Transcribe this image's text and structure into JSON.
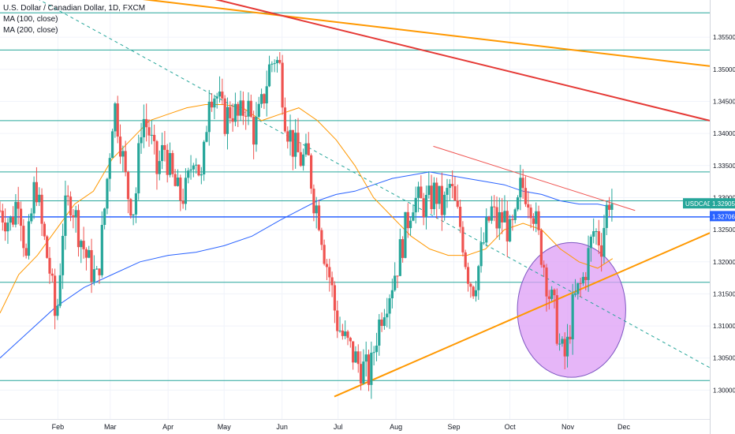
{
  "legend": {
    "symbol_line": "U.S. Dollar / Canadian Dollar, 1D, FXCM",
    "ma100": "MA (100, close)",
    "ma200": "MA (200, close)"
  },
  "chart_data": {
    "type": "candlestick",
    "symbol": "USDCAD",
    "timeframe": "1D",
    "source": "FXCM",
    "ylim": [
      1.2955,
      1.3608
    ],
    "y_ticks": [
      1.3,
      1.305,
      1.31,
      1.315,
      1.32,
      1.325,
      1.33,
      1.335,
      1.34,
      1.345,
      1.35,
      1.355
    ],
    "y_tick_labels": [
      "1.30000",
      "1.30500",
      "1.31000",
      "1.31500",
      "1.32000",
      "1.32500",
      "1.33000",
      "1.33500",
      "1.34000",
      "1.34500",
      "1.35000",
      "1.35500"
    ],
    "x_labels": [
      {
        "label": "Feb",
        "day": 31
      },
      {
        "label": "Mar",
        "day": 59
      },
      {
        "label": "Apr",
        "day": 90
      },
      {
        "label": "May",
        "day": 120
      },
      {
        "label": "Jun",
        "day": 151
      },
      {
        "label": "Jul",
        "day": 181
      },
      {
        "label": "Aug",
        "day": 212
      },
      {
        "label": "Sep",
        "day": 243
      },
      {
        "label": "Oct",
        "day": 273
      },
      {
        "label": "Nov",
        "day": 304
      },
      {
        "label": "Dec",
        "day": 334
      }
    ],
    "x_day_range": [
      0,
      380
    ],
    "price_label": {
      "symbol": "USDCAD",
      "value": "1.32905",
      "price": 1.32905,
      "color": "#26a69a"
    },
    "marker_label": {
      "value": "1.32706",
      "price": 1.32706,
      "color": "#2962ff"
    },
    "close_path": [
      [
        0,
        1.328
      ],
      [
        6,
        1.326
      ],
      [
        10,
        1.331
      ],
      [
        14,
        1.32
      ],
      [
        19,
        1.333
      ],
      [
        22,
        1.326
      ],
      [
        27,
        1.318
      ],
      [
        30,
        1.31
      ],
      [
        34,
        1.327
      ],
      [
        38,
        1.33
      ],
      [
        42,
        1.325
      ],
      [
        47,
        1.32
      ],
      [
        52,
        1.317
      ],
      [
        55,
        1.325
      ],
      [
        58,
        1.335
      ],
      [
        61,
        1.345
      ],
      [
        64,
        1.34
      ],
      [
        68,
        1.331
      ],
      [
        72,
        1.328
      ],
      [
        76,
        1.343
      ],
      [
        80,
        1.34
      ],
      [
        84,
        1.334
      ],
      [
        88,
        1.338
      ],
      [
        92,
        1.333
      ],
      [
        96,
        1.33
      ],
      [
        100,
        1.331
      ],
      [
        104,
        1.338
      ],
      [
        108,
        1.332
      ],
      [
        112,
        1.347
      ],
      [
        116,
        1.346
      ],
      [
        120,
        1.342
      ],
      [
        124,
        1.344
      ],
      [
        128,
        1.342
      ],
      [
        132,
        1.345
      ],
      [
        136,
        1.34
      ],
      [
        140,
        1.344
      ],
      [
        144,
        1.35
      ],
      [
        147,
        1.352
      ],
      [
        150,
        1.35
      ],
      [
        153,
        1.342
      ],
      [
        157,
        1.338
      ],
      [
        161,
        1.336
      ],
      [
        165,
        1.336
      ],
      [
        168,
        1.33
      ],
      [
        171,
        1.327
      ],
      [
        174,
        1.321
      ],
      [
        177,
        1.317
      ],
      [
        180,
        1.311
      ],
      [
        184,
        1.308
      ],
      [
        188,
        1.306
      ],
      [
        192,
        1.304
      ],
      [
        196,
        1.303
      ],
      [
        198,
        1.302
      ],
      [
        201,
        1.308
      ],
      [
        205,
        1.313
      ],
      [
        209,
        1.316
      ],
      [
        213,
        1.32
      ],
      [
        217,
        1.325
      ],
      [
        221,
        1.33
      ],
      [
        225,
        1.329
      ],
      [
        229,
        1.329
      ],
      [
        233,
        1.331
      ],
      [
        237,
        1.328
      ],
      [
        241,
        1.332
      ],
      [
        244,
        1.328
      ],
      [
        247,
        1.325
      ],
      [
        250,
        1.319
      ],
      [
        253,
        1.316
      ],
      [
        256,
        1.319
      ],
      [
        259,
        1.323
      ],
      [
        263,
        1.328
      ],
      [
        266,
        1.326
      ],
      [
        270,
        1.327
      ],
      [
        273,
        1.324
      ],
      [
        276,
        1.326
      ],
      [
        279,
        1.332
      ],
      [
        282,
        1.331
      ],
      [
        285,
        1.329
      ],
      [
        288,
        1.324
      ],
      [
        291,
        1.32
      ],
      [
        294,
        1.315
      ],
      [
        297,
        1.312
      ],
      [
        300,
        1.306
      ],
      [
        303,
        1.305
      ],
      [
        306,
        1.312
      ],
      [
        309,
        1.315
      ],
      [
        312,
        1.317
      ],
      [
        315,
        1.321
      ],
      [
        318,
        1.325
      ],
      [
        320,
        1.324
      ],
      [
        322,
        1.323
      ],
      [
        324,
        1.327
      ],
      [
        326,
        1.33
      ],
      [
        328,
        1.329
      ]
    ],
    "series": [
      {
        "name": "MA (100, close)",
        "color": "#ff9800",
        "points": [
          [
            0,
            1.312
          ],
          [
            10,
            1.318
          ],
          [
            20,
            1.321
          ],
          [
            30,
            1.325
          ],
          [
            40,
            1.329
          ],
          [
            50,
            1.331
          ],
          [
            60,
            1.336
          ],
          [
            70,
            1.339
          ],
          [
            80,
            1.342
          ],
          [
            90,
            1.343
          ],
          [
            100,
            1.344
          ],
          [
            110,
            1.3445
          ],
          [
            120,
            1.3445
          ],
          [
            130,
            1.344
          ],
          [
            140,
            1.342
          ],
          [
            150,
            1.343
          ],
          [
            160,
            1.344
          ],
          [
            170,
            1.342
          ],
          [
            180,
            1.339
          ],
          [
            190,
            1.335
          ],
          [
            200,
            1.33
          ],
          [
            210,
            1.327
          ],
          [
            220,
            1.324
          ],
          [
            230,
            1.322
          ],
          [
            240,
            1.321
          ],
          [
            250,
            1.321
          ],
          [
            260,
            1.322
          ],
          [
            270,
            1.325
          ],
          [
            280,
            1.326
          ],
          [
            290,
            1.325
          ],
          [
            300,
            1.322
          ],
          [
            310,
            1.32
          ],
          [
            320,
            1.319
          ],
          [
            328,
            1.3205
          ]
        ]
      },
      {
        "name": "MA (200, close)",
        "color": "#2962ff",
        "points": [
          [
            0,
            1.305
          ],
          [
            15,
            1.309
          ],
          [
            30,
            1.313
          ],
          [
            45,
            1.316
          ],
          [
            60,
            1.318
          ],
          [
            75,
            1.32
          ],
          [
            90,
            1.321
          ],
          [
            105,
            1.3215
          ],
          [
            120,
            1.3225
          ],
          [
            135,
            1.324
          ],
          [
            150,
            1.3265
          ],
          [
            160,
            1.328
          ],
          [
            170,
            1.3295
          ],
          [
            180,
            1.3305
          ],
          [
            190,
            1.331
          ],
          [
            200,
            1.332
          ],
          [
            210,
            1.333
          ],
          [
            220,
            1.3335
          ],
          [
            230,
            1.334
          ],
          [
            240,
            1.3335
          ],
          [
            250,
            1.333
          ],
          [
            260,
            1.3325
          ],
          [
            270,
            1.332
          ],
          [
            280,
            1.331
          ],
          [
            290,
            1.3305
          ],
          [
            300,
            1.3295
          ],
          [
            310,
            1.329
          ],
          [
            320,
            1.329
          ],
          [
            328,
            1.3285
          ]
        ]
      }
    ],
    "horizontal_levels": [
      {
        "price": 1.3588,
        "color": "#26a69a"
      },
      {
        "price": 1.353,
        "color": "#26a69a"
      },
      {
        "price": 1.342,
        "color": "#26a69a"
      },
      {
        "price": 1.334,
        "color": "#26a69a"
      },
      {
        "price": 1.3295,
        "color": "#26a69a"
      },
      {
        "price": 1.327,
        "color": "#2962ff"
      },
      {
        "price": 1.3168,
        "color": "#26a69a"
      },
      {
        "price": 1.3015,
        "color": "#26a69a"
      }
    ],
    "trend_lines": [
      {
        "from": [
          45,
          1.362
        ],
        "to": [
          380,
          1.3505
        ],
        "color": "#ff9800"
      },
      {
        "from": [
          100,
          1.362
        ],
        "to": [
          380,
          1.342
        ],
        "color": "#e53935"
      },
      {
        "from": [
          232,
          1.338
        ],
        "to": [
          340,
          1.328
        ],
        "color": "#ef5350"
      },
      {
        "from": [
          179,
          1.299
        ],
        "to": [
          380,
          1.3245
        ],
        "color": "#ff9800"
      },
      {
        "from": [
          20,
          1.361
        ],
        "to": [
          380,
          1.3035
        ],
        "color": "#26a69a",
        "dashed": true
      }
    ],
    "ellipse": {
      "center": [
        306,
        1.3125
      ],
      "radius_days": 29,
      "radius_price": 0.0105,
      "fill": "#dd9ef6",
      "stroke": "#7e57c2"
    },
    "colors": {
      "up": "#26a69a",
      "down": "#ef5350",
      "grid": "#f0f3fa"
    }
  }
}
